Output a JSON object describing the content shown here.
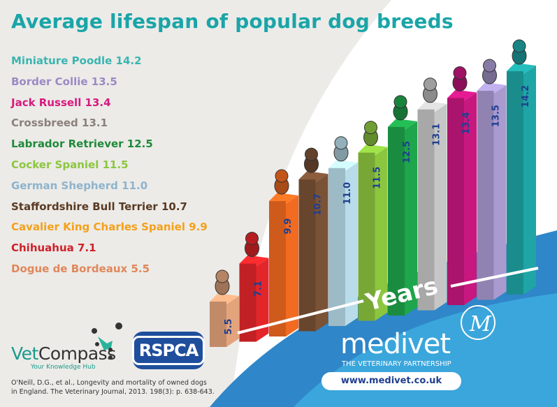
{
  "title": "Average lifespan of popular dog breeds",
  "chart_data": {
    "type": "bar",
    "title": "Average lifespan of popular dog breeds",
    "xlabel": "",
    "ylabel": "Years",
    "categories": [
      "Dogue de Bordeaux",
      "Chihuahua",
      "Cavalier King Charles Spaniel",
      "Staffordshire Bull Terrier",
      "German Shepherd",
      "Cocker Spaniel",
      "Labrador Retriever",
      "Crossbreed",
      "Jack Russell",
      "Border Collie",
      "Miniature Poodle"
    ],
    "values": [
      5.5,
      7.1,
      9.9,
      10.7,
      11.0,
      11.5,
      12.5,
      13.1,
      13.4,
      13.5,
      14.2
    ],
    "labels": [
      "5.5",
      "7.1",
      "9.9",
      "10.7",
      "11.0",
      "11.5",
      "12.5",
      "13.1",
      "13.4",
      "13.5",
      "14.2"
    ],
    "colors": [
      "#e3a47c",
      "#e3262a",
      "#f26b21",
      "#7a5236",
      "#b8dcea",
      "#8cc63f",
      "#1fa54b",
      "#c6c6c6",
      "#c8177f",
      "#a99ad0",
      "#1fa5a5"
    ]
  },
  "legend": [
    {
      "text": "Miniature Poodle 14.2",
      "color": "#3bb5b0"
    },
    {
      "text": "Border Collie 13.5",
      "color": "#9b8ac4"
    },
    {
      "text": "Jack Russell 13.4",
      "color": "#d6197e"
    },
    {
      "text": "Crossbreed 13.1",
      "color": "#8a8079"
    },
    {
      "text": "Labrador Retriever 12.5",
      "color": "#1f8a3a"
    },
    {
      "text": "Cocker Spaniel 11.5",
      "color": "#8cc63f"
    },
    {
      "text": "German Shepherd 11.0",
      "color": "#8fb3cc"
    },
    {
      "text": "Staffordshire Bull Terrier 10.7",
      "color": "#5a3a22"
    },
    {
      "text": "Cavalier King Charles Spaniel 9.9",
      "color": "#f5a01a"
    },
    {
      "text": "Chihuahua 7.1",
      "color": "#d0202a"
    },
    {
      "text": "Dogue de Bordeaux 5.5",
      "color": "#e0875a"
    }
  ],
  "axis_label": "Years",
  "vetcompass": {
    "name_a": "Vet",
    "name_b": "Compass",
    "tagline": "Your Knowledge Hub"
  },
  "rspca": "RSPCA",
  "citation": [
    "O'Neill, D.G., et al., Longevity and mortality of owned dogs",
    "in England. The Veterinary Journal, 2013. 198(3): p. 638-643."
  ],
  "medivet": {
    "name": "medivet",
    "tagline": "THE VETERINARY PARTNERSHIP",
    "url": "www.medivet.co.uk"
  },
  "accent": "#1aa5a8"
}
